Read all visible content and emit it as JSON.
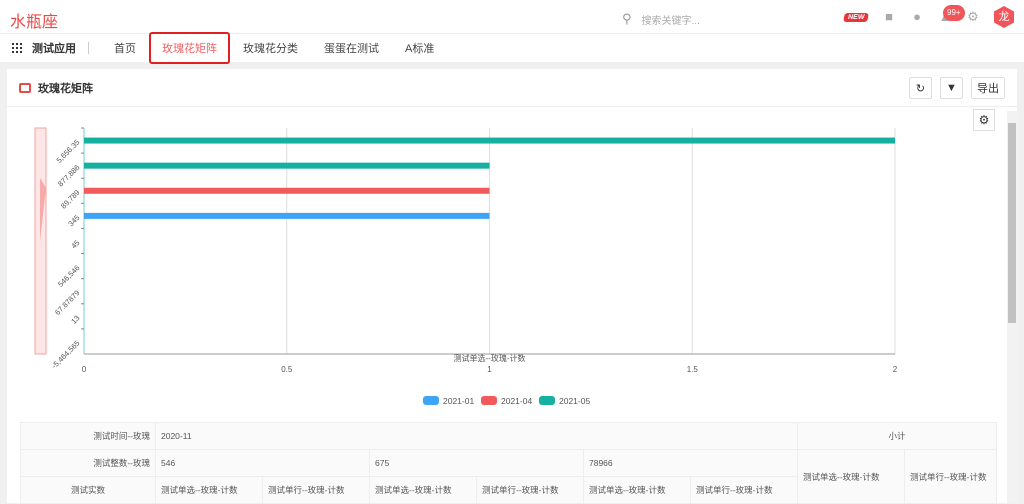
{
  "app": {
    "title": "水瓶座",
    "search_placeholder": "搜索关键字...",
    "new_badge": "NEW",
    "notif_count": "99+",
    "avatar": "龙"
  },
  "nav": {
    "app_name": "测试应用",
    "tabs": [
      "首页",
      "玫瑰花矩阵",
      "玫瑰花分类",
      "蛋蛋在测试",
      "A标准"
    ],
    "active": 1
  },
  "panel": {
    "title": "玫瑰花矩阵",
    "export_label": "导出"
  },
  "chart_data": {
    "type": "bar",
    "orientation": "horizontal",
    "categories": [
      "5,656.35",
      "877,886",
      "89,789",
      "345",
      "45",
      "546,546",
      "67.87879",
      "13",
      "-5,464,565"
    ],
    "series": [
      {
        "name": "2021-01",
        "color": "#3fa4f5",
        "values": [
          null,
          null,
          null,
          1,
          null,
          null,
          null,
          null,
          null
        ]
      },
      {
        "name": "2021-04",
        "color": "#f05a5a",
        "values": [
          null,
          null,
          1,
          null,
          null,
          null,
          null,
          null,
          null
        ]
      },
      {
        "name": "2021-05",
        "color": "#16b0a0",
        "values": [
          2,
          1,
          null,
          null,
          null,
          null,
          null,
          null,
          null
        ]
      }
    ],
    "xlabel": "测试单选--玫瑰-计数",
    "xlim": [
      0,
      2
    ],
    "xticks": [
      "0",
      "0.5",
      "1",
      "1.5",
      "2"
    ],
    "legend": "bottom",
    "grid": true
  },
  "table": {
    "row1_label": "测试时间--玫瑰",
    "row1_value": "2020-11",
    "subtotal": "小计",
    "row2_label": "测试整数--玫瑰",
    "row2_values": [
      "546",
      "675",
      "78966"
    ],
    "row3_label": "测试实数",
    "col_a": "测试单选--玫瑰-计数",
    "col_b": "测试单行--玫瑰-计数"
  }
}
